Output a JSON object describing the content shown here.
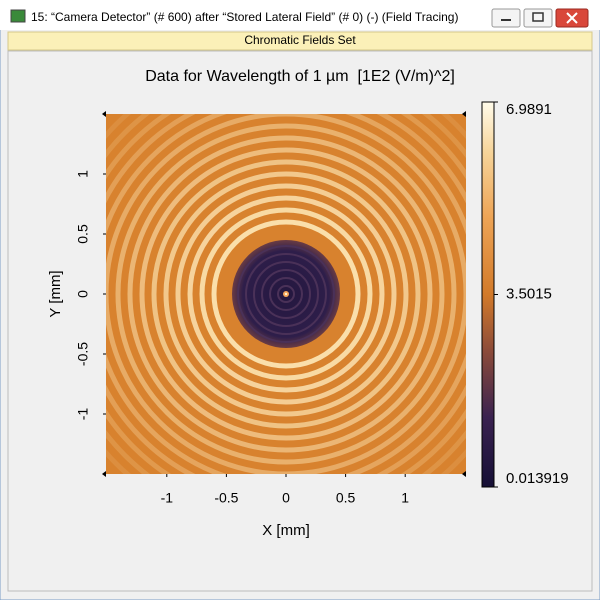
{
  "window": {
    "title": "15: “Camera Detector” (# 600) after “Stored Lateral Field” (# 0) (-) (Field Tracing)",
    "tab": "Chromatic Fields Set"
  },
  "chart_data": {
    "type": "heatmap",
    "title": "Data for Wavelength of 1 µm  [1E2 (V/m)^2]",
    "x_label": "X [mm]",
    "y_label": "Y [mm]",
    "xlim": [
      -1.51,
      1.51
    ],
    "ylim": [
      -1.5,
      1.5
    ],
    "xticks": [
      -1,
      -0.5,
      0,
      0.5,
      1
    ],
    "yticks": [
      -1,
      -0.5,
      0,
      0.5,
      1
    ],
    "colorbar": {
      "lim": [
        0.013919,
        6.9891
      ],
      "ticks": [
        0.013919,
        3.5015,
        6.9891
      ]
    }
  }
}
